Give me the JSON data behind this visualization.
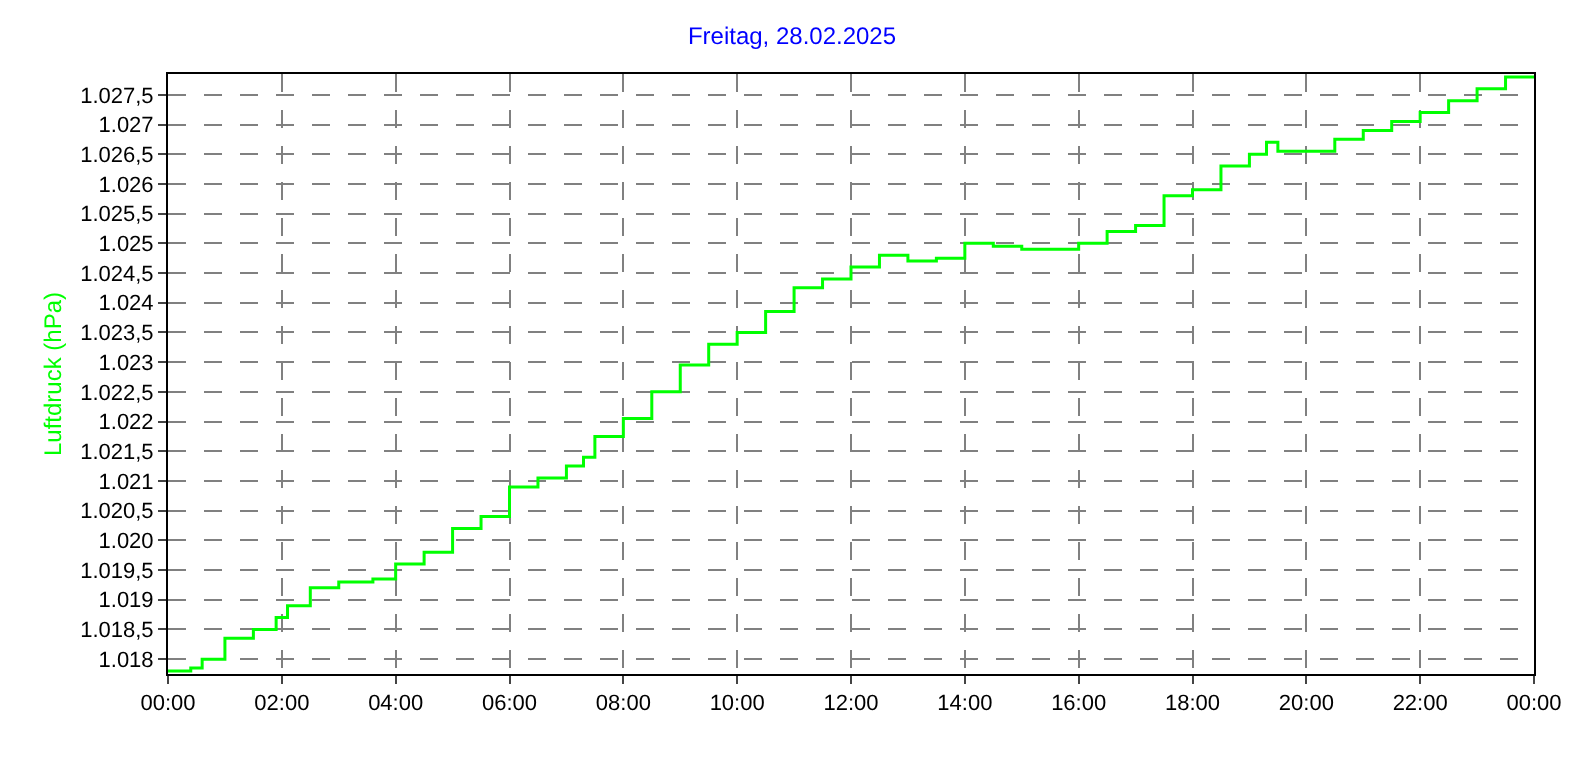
{
  "chart_data": {
    "type": "step",
    "title": "Freitag, 28.02.2025",
    "ylabel": "Luftdruck (hPa)",
    "x": [
      0,
      0.4,
      0.6,
      1,
      1.5,
      1.9,
      2.1,
      2.5,
      3,
      3.6,
      4,
      4.5,
      5,
      5.5,
      6,
      6.5,
      7,
      7.3,
      7.5,
      8,
      8.5,
      9,
      9.5,
      10,
      10.5,
      11,
      11.5,
      12,
      12.5,
      13,
      13.5,
      14,
      14.5,
      15,
      15.5,
      16,
      16.5,
      17,
      17.5,
      18,
      18.5,
      19,
      19.3,
      19.5,
      20,
      20.5,
      21,
      21.5,
      22,
      22.5,
      23,
      23.5,
      24
    ],
    "series": [
      {
        "color": "#00ff00",
        "values": [
          1017.8,
          1017.85,
          1018.0,
          1018.35,
          1018.5,
          1018.7,
          1018.9,
          1019.2,
          1019.3,
          1019.35,
          1019.6,
          1019.8,
          1020.2,
          1020.4,
          1020.9,
          1021.05,
          1021.25,
          1021.4,
          1021.75,
          1022.05,
          1022.5,
          1022.95,
          1023.3,
          1023.5,
          1023.85,
          1024.25,
          1024.4,
          1024.6,
          1024.8,
          1024.7,
          1024.75,
          1025.0,
          1024.95,
          1024.9,
          1024.9,
          1025.0,
          1025.2,
          1025.3,
          1025.8,
          1025.9,
          1026.3,
          1026.5,
          1026.7,
          1026.55,
          1026.55,
          1026.75,
          1026.9,
          1027.05,
          1027.2,
          1027.4,
          1027.6,
          1027.8,
          1027.8
        ]
      }
    ],
    "xlim": [
      0,
      24
    ],
    "xticks": [
      {
        "value": 0,
        "label": "00:00"
      },
      {
        "value": 2,
        "label": "02:00"
      },
      {
        "value": 4,
        "label": "04:00"
      },
      {
        "value": 6,
        "label": "06:00"
      },
      {
        "value": 8,
        "label": "08:00"
      },
      {
        "value": 10,
        "label": "10:00"
      },
      {
        "value": 12,
        "label": "12:00"
      },
      {
        "value": 14,
        "label": "14:00"
      },
      {
        "value": 16,
        "label": "16:00"
      },
      {
        "value": 18,
        "label": "18:00"
      },
      {
        "value": 20,
        "label": "20:00"
      },
      {
        "value": 22,
        "label": "22:00"
      },
      {
        "value": 24,
        "label": "00:00"
      }
    ],
    "ylim": [
      1017.75,
      1027.85
    ],
    "yticks": [
      {
        "value": 1018,
        "label": "1.018"
      },
      {
        "value": 1018.5,
        "label": "1.018,5"
      },
      {
        "value": 1019,
        "label": "1.019"
      },
      {
        "value": 1019.5,
        "label": "1.019,5"
      },
      {
        "value": 1020,
        "label": "1.020"
      },
      {
        "value": 1020.5,
        "label": "1.020,5"
      },
      {
        "value": 1021,
        "label": "1.021"
      },
      {
        "value": 1021.5,
        "label": "1.021,5"
      },
      {
        "value": 1022,
        "label": "1.022"
      },
      {
        "value": 1022.5,
        "label": "1.022,5"
      },
      {
        "value": 1023,
        "label": "1.023"
      },
      {
        "value": 1023.5,
        "label": "1.023,5"
      },
      {
        "value": 1024,
        "label": "1.024"
      },
      {
        "value": 1024.5,
        "label": "1.024,5"
      },
      {
        "value": 1025,
        "label": "1.025"
      },
      {
        "value": 1025.5,
        "label": "1.025,5"
      },
      {
        "value": 1026,
        "label": "1.026"
      },
      {
        "value": 1026.5,
        "label": "1.026,5"
      },
      {
        "value": 1027,
        "label": "1.027"
      },
      {
        "value": 1027.5,
        "label": "1.027,5"
      }
    ],
    "grid": true,
    "line_style": "solid"
  }
}
